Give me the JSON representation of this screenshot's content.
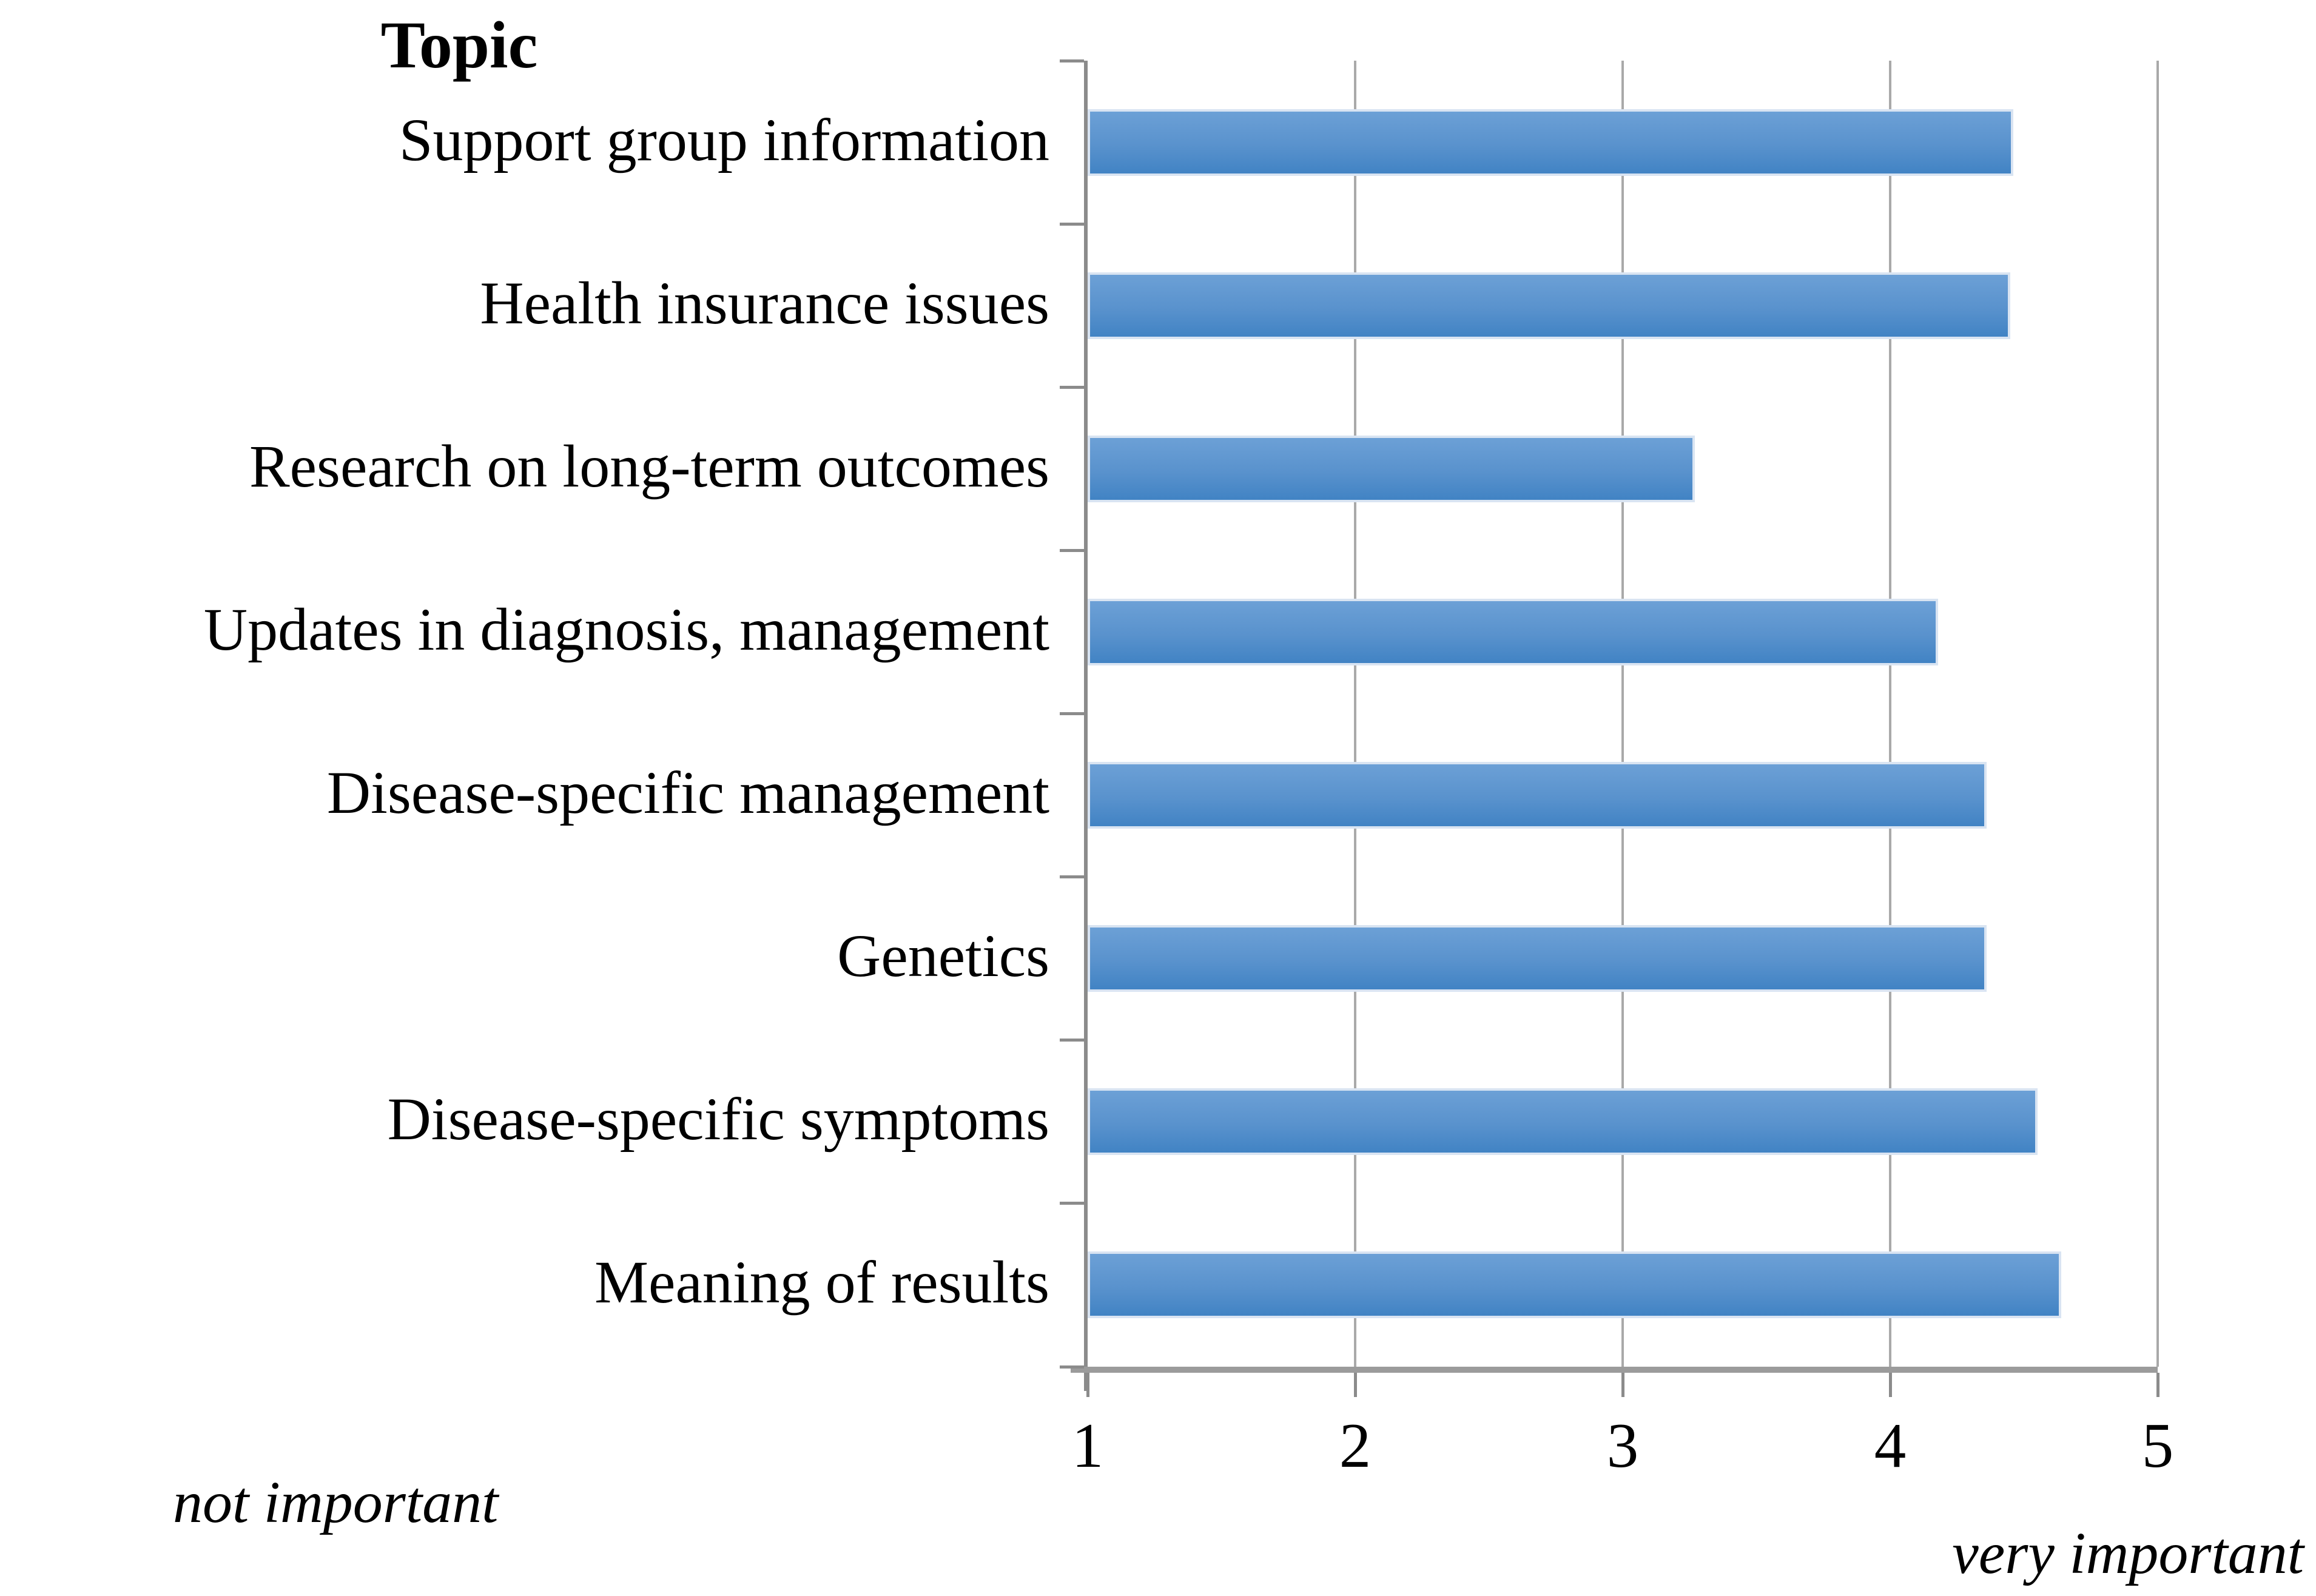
{
  "figure": {
    "title": "Topic",
    "min_label": "not important",
    "max_label": "very important"
  },
  "chart_data": {
    "type": "bar",
    "orientation": "horizontal",
    "title": "Topic",
    "categories": [
      "Support group information",
      "Health insurance issues",
      "Research on long-term outcomes",
      "Updates in diagnosis, management",
      "Disease-specific management",
      "Genetics",
      "Disease-specific symptoms",
      "Meaning of results"
    ],
    "values": [
      4.46,
      4.45,
      3.27,
      4.18,
      4.36,
      4.36,
      4.55,
      4.64
    ],
    "x_ticks": [
      "1",
      "2",
      "3",
      "4",
      "5"
    ],
    "xlim": [
      1,
      5
    ],
    "xlabel": "",
    "ylabel": "Topic",
    "grid": true,
    "legend": "none",
    "annotations": {
      "axis_min_note": "not important",
      "axis_max_note": "very important"
    },
    "colors": {
      "bar_gradient_top": "#6ca0d6",
      "bar_gradient_bottom": "#4183c4",
      "bar_border": "#d9e4f2",
      "gridline": "#a9a9a9",
      "axis_line": "#8b8b8b",
      "x_axis_line": "#9b9b9b",
      "text": "#000000",
      "background": "#ffffff"
    }
  }
}
